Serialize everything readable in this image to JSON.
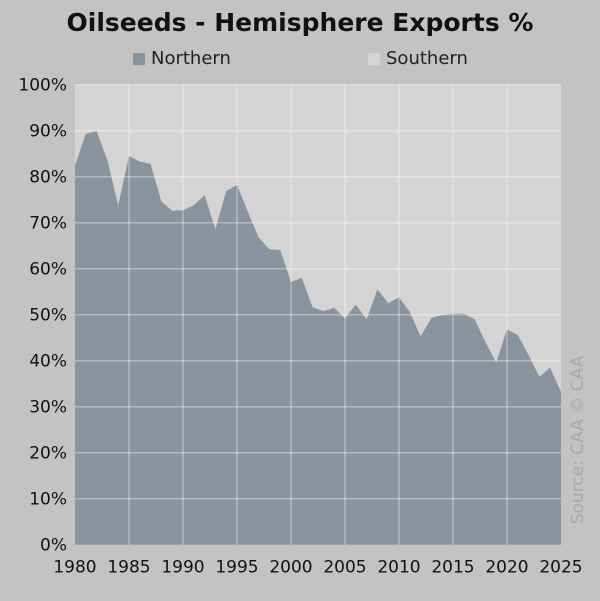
{
  "chart_data": {
    "type": "area",
    "title": "Oilseeds - Hemisphere Exports %",
    "xlabel": "",
    "ylabel": "",
    "x": [
      1980,
      1981,
      1982,
      1983,
      1984,
      1985,
      1986,
      1987,
      1988,
      1989,
      1990,
      1991,
      1992,
      1993,
      1994,
      1995,
      1996,
      1997,
      1998,
      1999,
      2000,
      2001,
      2002,
      2003,
      2004,
      2005,
      2006,
      2007,
      2008,
      2009,
      2010,
      2011,
      2012,
      2013,
      2014,
      2015,
      2016,
      2017,
      2018,
      2019,
      2020,
      2021,
      2022,
      2023,
      2024,
      2025
    ],
    "series": [
      {
        "name": "Northern",
        "color": "#8a949e",
        "values": [
          82.5,
          89.3,
          89.9,
          83.6,
          73.8,
          84.5,
          83.3,
          82.8,
          74.6,
          72.6,
          72.7,
          73.8,
          76.0,
          68.6,
          76.9,
          78.2,
          72.4,
          66.8,
          64.2,
          64.1,
          57.1,
          58.0,
          51.6,
          50.8,
          51.5,
          49.2,
          52.2,
          49.0,
          55.5,
          52.5,
          53.8,
          50.6,
          45.3,
          49.3,
          49.9,
          50.2,
          50.2,
          49.0,
          44.1,
          39.6,
          46.8,
          45.6,
          41.2,
          36.5,
          38.5,
          33.2
        ]
      },
      {
        "name": "Southern",
        "color": "#d4d4d4",
        "values": "remainder to 100%"
      }
    ],
    "stacked": true,
    "xlim": [
      1980,
      2025
    ],
    "ylim": [
      0,
      100
    ],
    "x_ticks": [
      "1980",
      "1985",
      "1990",
      "1995",
      "2000",
      "2005",
      "2010",
      "2015",
      "2020",
      "2025"
    ],
    "y_ticks": [
      "0%",
      "10%",
      "20%",
      "30%",
      "40%",
      "50%",
      "60%",
      "70%",
      "80%",
      "90%",
      "100%"
    ],
    "grid": true,
    "legend_position": "top"
  },
  "legend": {
    "northern": "Northern",
    "southern": "Southern"
  },
  "source": "Source: CAA  © CAA"
}
